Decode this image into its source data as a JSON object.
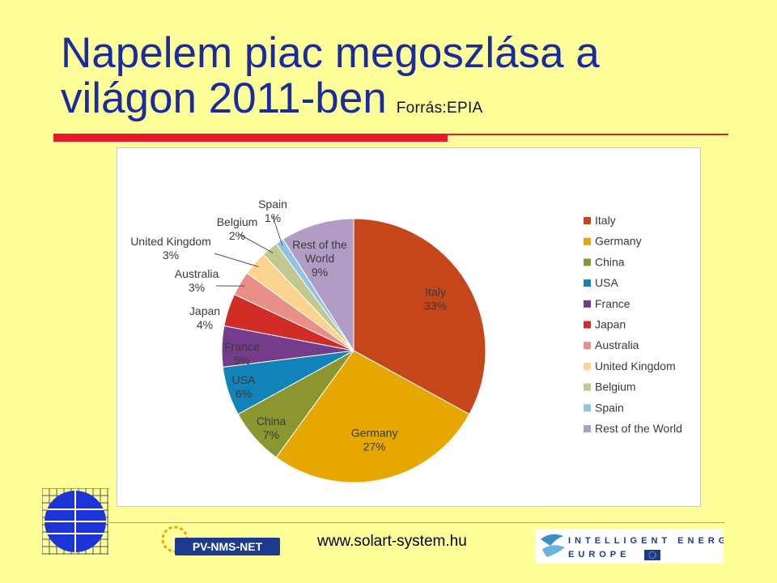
{
  "slide": {
    "title_line1": "Napelem piac megoszlása a",
    "title_line2": "világon 2011-ben",
    "source": "Forrás:EPIA"
  },
  "footer": {
    "url": "www.solart-system.hu",
    "logo_pv": "PV-NMS-NET",
    "logo_iee_top": "INTELLIGENT ENERGY",
    "logo_iee_bottom": "EUROPE"
  },
  "chart_data": {
    "type": "pie",
    "categories": [
      "Italy",
      "Germany",
      "China",
      "USA",
      "France",
      "Japan",
      "Australia",
      "United Kingdom",
      "Belgium",
      "Spain",
      "Rest of the World"
    ],
    "values": [
      33,
      27,
      7,
      6,
      5,
      4,
      3,
      3,
      2,
      1,
      9
    ],
    "labels": [
      "33%",
      "27%",
      "7%",
      "6%",
      "5%",
      "4%",
      "3%",
      "3%",
      "2%",
      "1%",
      "9%"
    ],
    "colors": [
      "#c5461a",
      "#e6a800",
      "#8b9630",
      "#1183b8",
      "#743c8a",
      "#d22c27",
      "#e88f88",
      "#fbd48f",
      "#c2c98f",
      "#93c3e3",
      "#b29cc6"
    ],
    "start_angle_deg": 0,
    "direction": "clockwise",
    "legend_position": "right"
  }
}
